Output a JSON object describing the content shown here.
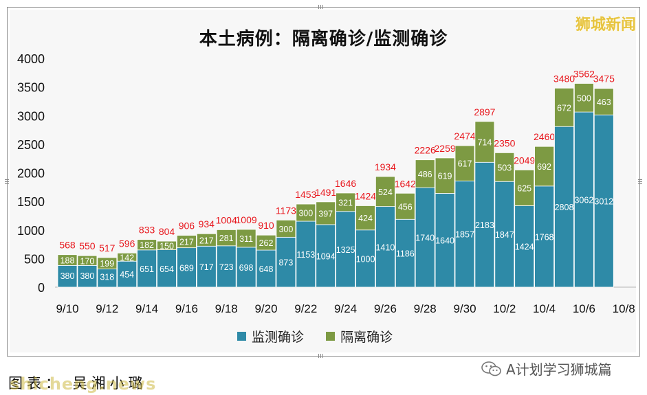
{
  "brand": "狮城新闻",
  "caption": "图表：  吴湘小璐",
  "watermark": "shicheng.news",
  "wechat_label": "A计划学习狮城篇",
  "colors": {
    "monitor": "#2e8aa7",
    "isolation": "#7d9a43",
    "total": "#e8171d"
  },
  "chart_data": {
    "type": "bar",
    "stacked": true,
    "title": "本土病例：隔离确诊/监测确诊",
    "ylim": [
      0,
      4000
    ],
    "yticks": [
      0,
      500,
      1000,
      1500,
      2000,
      2500,
      3000,
      3500,
      4000
    ],
    "xticklabels": [
      "9/10",
      "9/12",
      "9/14",
      "9/16",
      "9/18",
      "9/20",
      "9/22",
      "9/24",
      "9/26",
      "9/28",
      "9/30",
      "10/2",
      "10/4",
      "10/6",
      "10/8"
    ],
    "categories": [
      "9/10",
      "9/11",
      "9/12",
      "9/13",
      "9/14",
      "9/15",
      "9/16",
      "9/17",
      "9/18",
      "9/19",
      "9/20",
      "9/21",
      "9/22",
      "9/23",
      "9/24",
      "9/25",
      "9/26",
      "9/27",
      "9/28",
      "9/29",
      "9/30",
      "10/1",
      "10/2",
      "10/3",
      "10/4",
      "10/5",
      "10/6",
      "10/7"
    ],
    "series": [
      {
        "name": "监测确诊",
        "values": [
          380,
          380,
          318,
          454,
          651,
          654,
          689,
          717,
          723,
          698,
          648,
          873,
          1153,
          1094,
          1325,
          1000,
          1410,
          1186,
          1740,
          1640,
          1857,
          2183,
          1847,
          1424,
          1768,
          2808,
          3062,
          3012
        ]
      },
      {
        "name": "隔离确诊",
        "values": [
          188,
          170,
          199,
          142,
          182,
          150,
          217,
          217,
          281,
          311,
          262,
          300,
          300,
          397,
          321,
          424,
          524,
          456,
          486,
          619,
          617,
          714,
          503,
          625,
          692,
          672,
          500,
          463
        ]
      }
    ],
    "totals": [
      568,
      550,
      517,
      596,
      833,
      804,
      906,
      934,
      1004,
      1009,
      910,
      1173,
      1453,
      1491,
      1646,
      1424,
      1934,
      1642,
      2226,
      2259,
      2474,
      2897,
      2350,
      2049,
      2460,
      3480,
      3562,
      3475
    ],
    "legend": [
      "监测确诊",
      "隔离确诊"
    ],
    "legend_position": "bottom",
    "grid": false
  }
}
